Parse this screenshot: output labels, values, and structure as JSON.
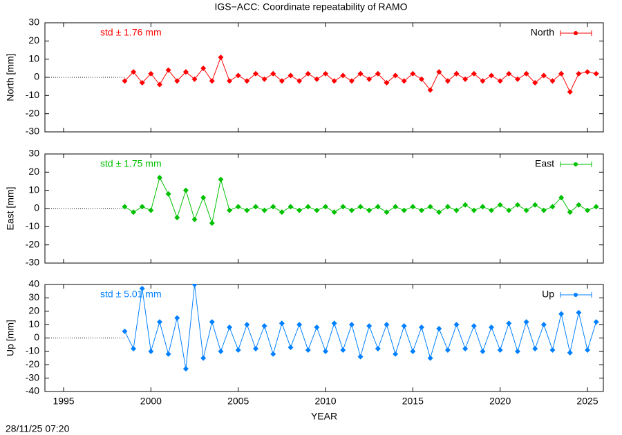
{
  "title": "IGS−ACC: Coordinate repeatability of RAMO",
  "timestamp": "28/11/25 07:20",
  "chart_data": [
    {
      "type": "line",
      "ylabel": "North [mm]",
      "annotation": "std ± 1.76 mm",
      "xlim": [
        1993.93,
        2025.91
      ],
      "xticks": [
        1995,
        2000,
        2005,
        2010,
        2015,
        2020,
        2025
      ],
      "ylim": [
        -30,
        30
      ],
      "yticks": [
        -30,
        -20,
        -10,
        0,
        10,
        20,
        30
      ],
      "x": [
        1998.5,
        1999,
        1999.5,
        2000,
        2000.5,
        2001,
        2001.5,
        2002,
        2002.5,
        2003,
        2003.5,
        2004,
        2004.5,
        2005,
        2005.5,
        2006,
        2006.5,
        2007,
        2007.5,
        2008,
        2008.5,
        2009,
        2009.5,
        2010,
        2010.5,
        2011,
        2011.5,
        2012,
        2012.5,
        2013,
        2013.5,
        2014,
        2014.5,
        2015,
        2015.5,
        2016,
        2016.5,
        2017,
        2017.5,
        2018,
        2018.5,
        2019,
        2019.5,
        2020,
        2020.5,
        2021,
        2021.5,
        2022,
        2022.5,
        2023,
        2023.5,
        2024,
        2024.5,
        2025,
        2025.5
      ],
      "series": [
        {
          "name": "North",
          "color": "#ff0000",
          "values": [
            -2,
            3,
            -3,
            2,
            -4,
            4,
            -2,
            3,
            -1,
            5,
            -2,
            11,
            -2,
            1,
            -2,
            2,
            -1,
            2,
            -2,
            1,
            -2,
            2,
            -1,
            2,
            -2,
            1,
            -2,
            2,
            -1,
            2,
            -3,
            1,
            -2,
            2,
            -1,
            -7,
            3,
            -2,
            2,
            -1,
            2,
            -2,
            1,
            -2,
            2,
            -1,
            2,
            -3,
            1,
            -2,
            2,
            -8,
            2,
            3,
            2
          ]
        }
      ]
    },
    {
      "type": "line",
      "ylabel": "East [mm]",
      "annotation": "std ± 1.75 mm",
      "xlim": [
        1993.93,
        2025.91
      ],
      "xticks": [
        1995,
        2000,
        2005,
        2010,
        2015,
        2020,
        2025
      ],
      "ylim": [
        -30,
        30
      ],
      "yticks": [
        -30,
        -20,
        -10,
        0,
        10,
        20,
        30
      ],
      "x": [
        1998.5,
        1999,
        1999.5,
        2000,
        2000.5,
        2001,
        2001.5,
        2002,
        2002.5,
        2003,
        2003.5,
        2004,
        2004.5,
        2005,
        2005.5,
        2006,
        2006.5,
        2007,
        2007.5,
        2008,
        2008.5,
        2009,
        2009.5,
        2010,
        2010.5,
        2011,
        2011.5,
        2012,
        2012.5,
        2013,
        2013.5,
        2014,
        2014.5,
        2015,
        2015.5,
        2016,
        2016.5,
        2017,
        2017.5,
        2018,
        2018.5,
        2019,
        2019.5,
        2020,
        2020.5,
        2021,
        2021.5,
        2022,
        2022.5,
        2023,
        2023.5,
        2024,
        2024.5,
        2025,
        2025.5
      ],
      "series": [
        {
          "name": "East",
          "color": "#00c000",
          "values": [
            1,
            -2,
            1,
            -1,
            17,
            8,
            -5,
            10,
            -6,
            6,
            -8,
            16,
            -1,
            1,
            -1,
            1,
            -1,
            1,
            -2,
            1,
            -1,
            1,
            -1,
            1,
            -2,
            1,
            -1,
            1,
            -1,
            1,
            -2,
            1,
            -1,
            1,
            -1,
            1,
            -2,
            1,
            -1,
            2,
            -1,
            1,
            -1,
            2,
            -1,
            2,
            -1,
            2,
            -1,
            1,
            6,
            -2,
            2,
            -1,
            1
          ]
        }
      ]
    },
    {
      "type": "line",
      "ylabel": "Up [mm]",
      "annotation": "std ± 5.01 mm",
      "xlabel": "YEAR",
      "xlim": [
        1993.93,
        2025.91
      ],
      "xticks": [
        1995,
        2000,
        2005,
        2010,
        2015,
        2020,
        2025
      ],
      "ylim": [
        -40,
        40
      ],
      "yticks": [
        -40,
        -30,
        -20,
        -10,
        0,
        10,
        20,
        30,
        40
      ],
      "x": [
        1998.5,
        1999,
        1999.5,
        2000,
        2000.5,
        2001,
        2001.5,
        2002,
        2002.5,
        2003,
        2003.5,
        2004,
        2004.5,
        2005,
        2005.5,
        2006,
        2006.5,
        2007,
        2007.5,
        2008,
        2008.5,
        2009,
        2009.5,
        2010,
        2010.5,
        2011,
        2011.5,
        2012,
        2012.5,
        2013,
        2013.5,
        2014,
        2014.5,
        2015,
        2015.5,
        2016,
        2016.5,
        2017,
        2017.5,
        2018,
        2018.5,
        2019,
        2019.5,
        2020,
        2020.5,
        2021,
        2021.5,
        2022,
        2022.5,
        2023,
        2023.5,
        2024,
        2024.5,
        2025,
        2025.5
      ],
      "series": [
        {
          "name": "Up",
          "color": "#0080ff",
          "values": [
            5,
            -8,
            37,
            -10,
            12,
            -12,
            15,
            -23,
            40,
            -15,
            12,
            -10,
            8,
            -9,
            10,
            -8,
            9,
            -12,
            11,
            -7,
            10,
            -9,
            8,
            -10,
            11,
            -9,
            10,
            -14,
            9,
            -8,
            10,
            -12,
            9,
            -10,
            8,
            -15,
            7,
            -9,
            10,
            -8,
            9,
            -10,
            8,
            -9,
            11,
            -10,
            12,
            -8,
            10,
            -9,
            18,
            -11,
            19,
            -9,
            12
          ]
        }
      ]
    }
  ]
}
